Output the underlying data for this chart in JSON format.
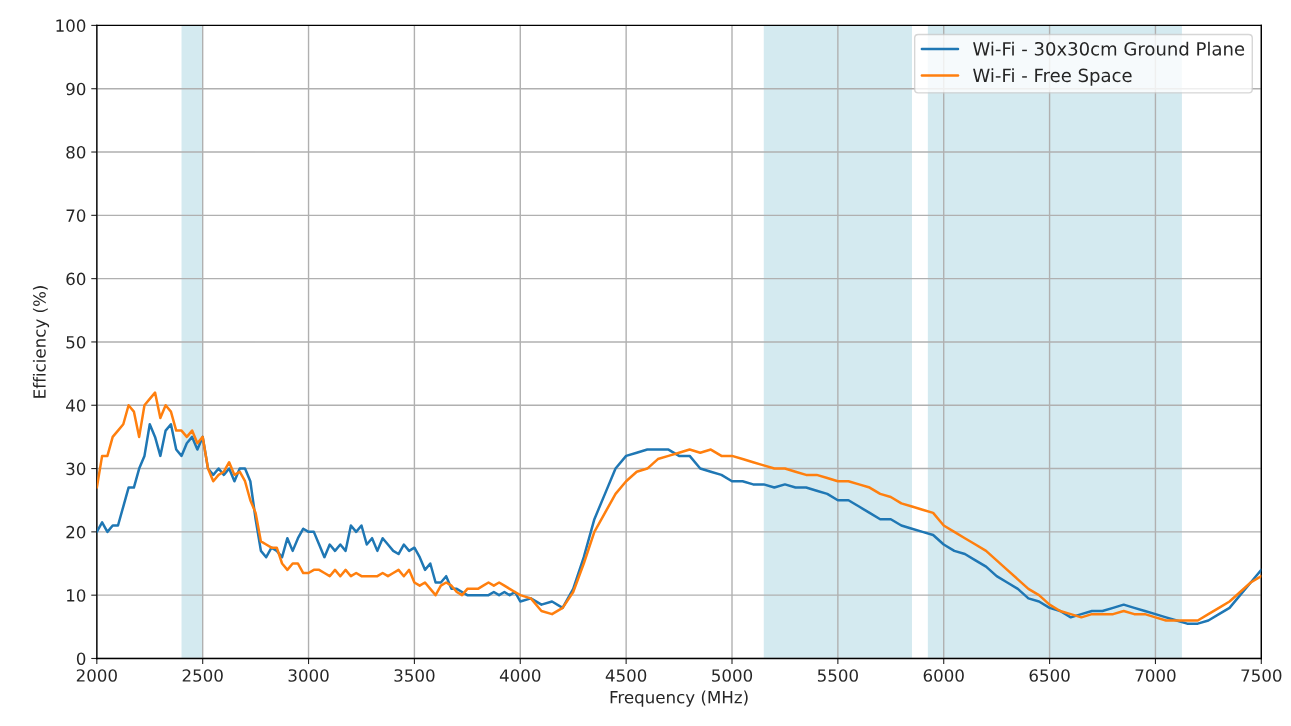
{
  "chart_data": {
    "type": "line",
    "xlabel": "Frequency (MHz)",
    "ylabel": "Efficiency (%)",
    "x": [
      2000,
      2025,
      2050,
      2075,
      2100,
      2125,
      2150,
      2175,
      2200,
      2225,
      2250,
      2275,
      2300,
      2325,
      2350,
      2375,
      2400,
      2425,
      2450,
      2475,
      2500,
      2525,
      2550,
      2575,
      2600,
      2625,
      2650,
      2675,
      2700,
      2725,
      2750,
      2775,
      2800,
      2825,
      2850,
      2875,
      2900,
      2925,
      2950,
      2975,
      3000,
      3025,
      3050,
      3075,
      3100,
      3125,
      3150,
      3175,
      3200,
      3225,
      3250,
      3275,
      3300,
      3325,
      3350,
      3375,
      3400,
      3425,
      3450,
      3475,
      3500,
      3525,
      3550,
      3575,
      3600,
      3625,
      3650,
      3675,
      3700,
      3725,
      3750,
      3775,
      3800,
      3825,
      3850,
      3875,
      3900,
      3925,
      3950,
      3975,
      4000,
      4050,
      4100,
      4150,
      4200,
      4250,
      4300,
      4350,
      4400,
      4450,
      4500,
      4550,
      4600,
      4650,
      4700,
      4750,
      4800,
      4850,
      4900,
      4950,
      5000,
      5050,
      5100,
      5150,
      5200,
      5250,
      5300,
      5350,
      5400,
      5450,
      5500,
      5550,
      5600,
      5650,
      5700,
      5750,
      5800,
      5850,
      5900,
      5950,
      6000,
      6050,
      6100,
      6150,
      6200,
      6250,
      6300,
      6350,
      6400,
      6450,
      6500,
      6550,
      6600,
      6650,
      6700,
      6750,
      6800,
      6850,
      6900,
      6950,
      7000,
      7050,
      7100,
      7150,
      7200,
      7250,
      7300,
      7350,
      7400,
      7450,
      7500
    ],
    "series": [
      {
        "name": "Wi-Fi - 30x30cm Ground Plane",
        "color": "#1f77b4",
        "values": [
          20,
          21.5,
          20,
          21,
          21,
          24,
          27,
          27,
          30,
          32,
          37,
          35,
          32,
          36,
          37,
          33,
          32,
          34,
          35,
          33,
          35,
          30,
          29,
          30,
          29,
          30,
          28,
          30,
          30,
          28,
          22,
          17,
          16,
          17.5,
          17,
          16,
          19,
          17,
          19,
          20.5,
          20,
          20,
          18,
          16,
          18,
          17,
          18,
          17,
          21,
          20,
          21,
          18,
          19,
          17,
          19,
          18,
          17,
          16.5,
          18,
          17,
          17.5,
          16,
          14,
          15,
          12,
          12,
          13,
          11,
          11,
          10.5,
          10,
          10,
          10,
          10,
          10,
          10.5,
          10,
          10.5,
          10,
          10.5,
          9,
          9.5,
          8.5,
          9,
          8,
          11,
          16,
          22,
          26,
          30,
          32,
          32.5,
          33,
          33,
          33,
          32,
          32,
          30,
          29.5,
          29,
          28,
          28,
          27.5,
          27.5,
          27,
          27.5,
          27,
          27,
          26.5,
          26,
          25,
          25,
          24,
          23,
          22,
          22,
          21,
          20.5,
          20,
          19.5,
          18,
          17,
          16.5,
          15.5,
          14.5,
          13,
          12,
          11,
          9.5,
          9,
          8,
          7.5,
          6.5,
          7,
          7.5,
          7.5,
          8,
          8.5,
          8,
          7.5,
          7,
          6.5,
          6,
          5.5,
          5.5,
          6,
          7,
          8,
          10,
          12,
          14
        ]
      },
      {
        "name": "Wi-Fi - Free Space",
        "color": "#ff7f0e",
        "values": [
          27,
          32,
          32,
          35,
          36,
          37,
          40,
          39,
          35,
          40,
          41,
          42,
          38,
          40,
          39,
          36,
          36,
          35,
          36,
          34,
          35,
          30,
          28,
          29,
          29.5,
          31,
          29,
          29.5,
          28,
          25,
          23,
          18.5,
          18,
          17.5,
          17.5,
          15,
          14,
          15,
          15,
          13.5,
          13.5,
          14,
          14,
          13.5,
          13,
          14,
          13,
          14,
          13,
          13.5,
          13,
          13,
          13,
          13,
          13.5,
          13,
          13.5,
          14,
          13,
          14,
          12,
          11.5,
          12,
          11,
          10,
          11.5,
          12,
          11.5,
          10.5,
          10,
          11,
          11,
          11,
          11.5,
          12,
          11.5,
          12,
          11.5,
          11,
          10.5,
          10,
          9.5,
          7.5,
          7,
          8,
          10.5,
          15,
          20,
          23,
          26,
          28,
          29.5,
          30,
          31.5,
          32,
          32.5,
          33,
          32.5,
          33,
          32,
          32,
          31.5,
          31,
          30.5,
          30,
          30,
          29.5,
          29,
          29,
          28.5,
          28,
          28,
          27.5,
          27,
          26,
          25.5,
          24.5,
          24,
          23.5,
          23,
          21,
          20,
          19,
          18,
          17,
          15.5,
          14,
          12.5,
          11,
          10,
          8.5,
          7.5,
          7,
          6.5,
          7,
          7,
          7,
          7.5,
          7,
          7,
          6.5,
          6,
          6,
          6,
          6,
          7,
          8,
          9,
          10.5,
          12,
          13
        ]
      }
    ],
    "bands": [
      {
        "axis": "x",
        "from": 2400,
        "to": 2500,
        "color": "#d4eaf0"
      },
      {
        "axis": "x",
        "from": 5150,
        "to": 5850,
        "color": "#d4eaf0"
      },
      {
        "axis": "x",
        "from": 5925,
        "to": 7125,
        "color": "#d4eaf0"
      }
    ],
    "xlim": [
      2000,
      7500
    ],
    "xticks": [
      2000,
      2500,
      3000,
      3500,
      4000,
      4500,
      5000,
      5500,
      6000,
      6500,
      7000,
      7500
    ],
    "ylim": [
      0,
      100
    ],
    "yticks": [
      0,
      10,
      20,
      30,
      40,
      50,
      60,
      70,
      80,
      90,
      100
    ],
    "grid": true,
    "legend": "top right"
  }
}
